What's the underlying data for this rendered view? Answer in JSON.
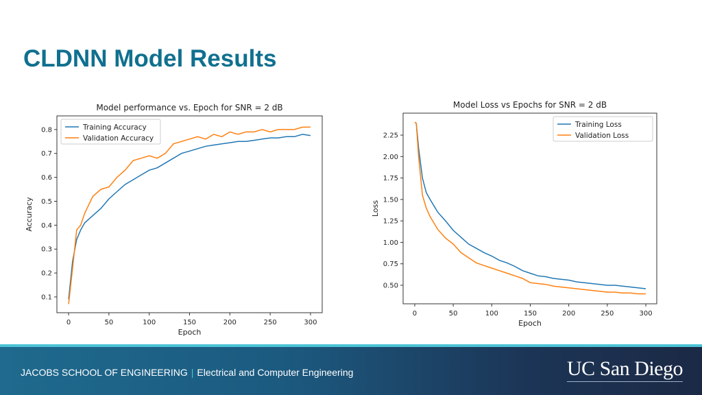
{
  "slide": {
    "title": "CLDNN Model Results"
  },
  "footer": {
    "school": "JACOBS SCHOOL OF ENGINEERING",
    "separator": "|",
    "department": "Electrical and Computer Engineering",
    "logo_text": "UC San Diego"
  },
  "colors": {
    "title": "#10708f",
    "series_blue": "#1f77b4",
    "series_orange": "#ff7f0e",
    "footer_accent": "#4cc3d6"
  },
  "chart_data": [
    {
      "type": "line",
      "title": "Model performance vs. Epoch for SNR = 2 dB",
      "xlabel": "Epoch",
      "ylabel": "Accuracy",
      "xlim": [
        -14.5,
        314.5
      ],
      "ylim": [
        0.034,
        0.857
      ],
      "xticks": [
        "0",
        "50",
        "100",
        "150",
        "200",
        "250",
        "300"
      ],
      "yticks": [
        "0.1",
        "0.2",
        "0.3",
        "0.4",
        "0.5",
        "0.6",
        "0.7",
        "0.8"
      ],
      "grid": false,
      "legend": "top-left",
      "x": [
        0,
        5,
        10,
        15,
        20,
        30,
        40,
        50,
        60,
        70,
        80,
        90,
        100,
        110,
        120,
        130,
        140,
        150,
        160,
        170,
        180,
        190,
        200,
        210,
        220,
        230,
        240,
        250,
        260,
        270,
        280,
        290,
        300
      ],
      "series": [
        {
          "name": "Training Accuracy",
          "color": "#1f77b4",
          "values": [
            0.09,
            0.25,
            0.34,
            0.38,
            0.41,
            0.44,
            0.47,
            0.51,
            0.54,
            0.57,
            0.59,
            0.61,
            0.63,
            0.64,
            0.66,
            0.68,
            0.7,
            0.71,
            0.72,
            0.73,
            0.735,
            0.74,
            0.745,
            0.75,
            0.75,
            0.755,
            0.76,
            0.765,
            0.765,
            0.77,
            0.77,
            0.78,
            0.775
          ]
        },
        {
          "name": "Validation Accuracy",
          "color": "#ff7f0e",
          "values": [
            0.07,
            0.22,
            0.38,
            0.4,
            0.45,
            0.52,
            0.55,
            0.56,
            0.6,
            0.63,
            0.67,
            0.68,
            0.69,
            0.68,
            0.7,
            0.74,
            0.75,
            0.76,
            0.77,
            0.76,
            0.78,
            0.77,
            0.79,
            0.78,
            0.79,
            0.79,
            0.8,
            0.79,
            0.8,
            0.8,
            0.8,
            0.81,
            0.81
          ]
        }
      ]
    },
    {
      "type": "line",
      "title": "Model Loss vs Epochs for SNR = 2 dB",
      "xlabel": "Epoch",
      "ylabel": "Loss",
      "xlim": [
        -15.1,
        314.2
      ],
      "ylim": [
        0.284,
        2.506
      ],
      "xticks": [
        "0",
        "50",
        "100",
        "150",
        "200",
        "250",
        "300"
      ],
      "yticks": [
        "0.50",
        "0.75",
        "1.00",
        "1.25",
        "1.50",
        "1.75",
        "2.00",
        "2.25"
      ],
      "grid": false,
      "legend": "top-right",
      "x": [
        0,
        2,
        5,
        10,
        15,
        20,
        30,
        40,
        50,
        60,
        70,
        80,
        90,
        100,
        110,
        120,
        130,
        140,
        150,
        160,
        170,
        180,
        190,
        200,
        210,
        220,
        230,
        240,
        250,
        260,
        270,
        280,
        290,
        300
      ],
      "series": [
        {
          "name": "Training Loss",
          "color": "#1f77b4",
          "values": [
            2.4,
            2.39,
            2.1,
            1.75,
            1.58,
            1.5,
            1.35,
            1.25,
            1.14,
            1.06,
            0.98,
            0.93,
            0.88,
            0.84,
            0.79,
            0.76,
            0.72,
            0.67,
            0.64,
            0.61,
            0.6,
            0.58,
            0.57,
            0.56,
            0.54,
            0.53,
            0.52,
            0.51,
            0.5,
            0.5,
            0.49,
            0.48,
            0.47,
            0.46
          ]
        },
        {
          "name": "Validation Loss",
          "color": "#ff7f0e",
          "values": [
            2.4,
            2.39,
            2.0,
            1.55,
            1.4,
            1.3,
            1.15,
            1.05,
            0.98,
            0.88,
            0.82,
            0.76,
            0.73,
            0.7,
            0.67,
            0.64,
            0.61,
            0.58,
            0.53,
            0.52,
            0.51,
            0.49,
            0.48,
            0.47,
            0.46,
            0.45,
            0.44,
            0.43,
            0.42,
            0.42,
            0.41,
            0.41,
            0.4,
            0.4
          ]
        }
      ]
    }
  ]
}
